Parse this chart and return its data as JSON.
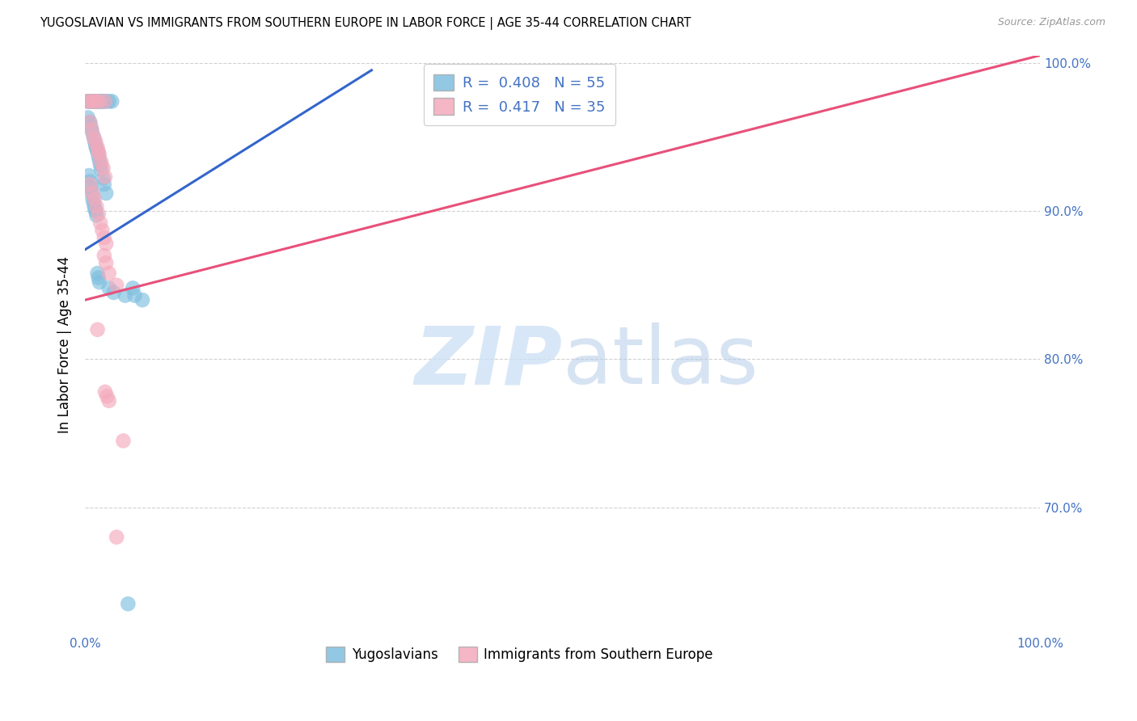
{
  "title": "YUGOSLAVIAN VS IMMIGRANTS FROM SOUTHERN EUROPE IN LABOR FORCE | AGE 35-44 CORRELATION CHART",
  "source": "Source: ZipAtlas.com",
  "ylabel": "In Labor Force | Age 35-44",
  "legend_box_blue": "R =  0.408   N = 55",
  "legend_box_pink": "R =  0.417   N = 35",
  "legend_bottom": [
    "Yugoslavians",
    "Immigrants from Southern Europe"
  ],
  "blue_color": "#7fbfdf",
  "pink_color": "#f4aabc",
  "blue_line_color": "#3366cc",
  "pink_line_color": "#e8507a",
  "accent_color": "#4472c4",
  "watermark_zip_color": "#cddff0",
  "watermark_atlas_color": "#b8cfe8",
  "background": "#ffffff",
  "grid_color": "#cccccc",
  "xlim": [
    0.0,
    1.0
  ],
  "ylim": [
    0.615,
    1.005
  ],
  "x_ticks": [
    0.0,
    0.125,
    0.25,
    0.375,
    0.5,
    0.625,
    0.75,
    0.875,
    1.0
  ],
  "x_tick_labels": [
    "0.0%",
    "",
    "",
    "",
    "",
    "",
    "",
    "",
    "100.0%"
  ],
  "y_ticks": [
    0.7,
    0.8,
    0.9,
    1.0
  ],
  "y_tick_labels_right": [
    "70.0%",
    "80.0%",
    "90.0%",
    "100.0%"
  ],
  "blue_scatter_x": [
    0.002,
    0.004,
    0.005,
    0.006,
    0.007,
    0.008,
    0.009,
    0.01,
    0.011,
    0.012,
    0.013,
    0.014,
    0.015,
    0.016,
    0.017,
    0.018,
    0.02,
    0.022,
    0.025,
    0.028,
    0.003,
    0.005,
    0.006,
    0.007,
    0.009,
    0.01,
    0.011,
    0.012,
    0.013,
    0.014,
    0.015,
    0.016,
    0.017,
    0.019,
    0.02,
    0.022,
    0.004,
    0.005,
    0.006,
    0.007,
    0.008,
    0.009,
    0.01,
    0.011,
    0.012,
    0.013,
    0.014,
    0.015,
    0.025,
    0.03,
    0.042,
    0.045,
    0.05,
    0.052,
    0.06
  ],
  "blue_scatter_y": [
    0.974,
    0.974,
    0.974,
    0.974,
    0.974,
    0.974,
    0.974,
    0.974,
    0.974,
    0.974,
    0.974,
    0.974,
    0.974,
    0.974,
    0.974,
    0.974,
    0.974,
    0.974,
    0.974,
    0.974,
    0.963,
    0.96,
    0.957,
    0.954,
    0.95,
    0.947,
    0.944,
    0.942,
    0.94,
    0.937,
    0.934,
    0.931,
    0.928,
    0.922,
    0.918,
    0.912,
    0.924,
    0.92,
    0.916,
    0.912,
    0.908,
    0.905,
    0.902,
    0.9,
    0.897,
    0.858,
    0.855,
    0.852,
    0.848,
    0.845,
    0.843,
    0.635,
    0.848,
    0.843,
    0.84
  ],
  "pink_scatter_x": [
    0.003,
    0.006,
    0.009,
    0.012,
    0.015,
    0.021,
    0.005,
    0.007,
    0.009,
    0.011,
    0.013,
    0.014,
    0.015,
    0.017,
    0.019,
    0.021,
    0.005,
    0.008,
    0.01,
    0.012,
    0.014,
    0.016,
    0.018,
    0.02,
    0.022,
    0.013,
    0.021,
    0.023,
    0.025,
    0.02,
    0.022,
    0.025,
    0.033,
    0.033,
    0.04
  ],
  "pink_scatter_y": [
    0.974,
    0.974,
    0.974,
    0.974,
    0.974,
    0.974,
    0.96,
    0.955,
    0.95,
    0.947,
    0.943,
    0.94,
    0.938,
    0.933,
    0.929,
    0.923,
    0.918,
    0.912,
    0.908,
    0.903,
    0.898,
    0.892,
    0.887,
    0.882,
    0.878,
    0.82,
    0.778,
    0.775,
    0.772,
    0.87,
    0.865,
    0.858,
    0.85,
    0.68,
    0.745
  ],
  "blue_line_x0": 0.0,
  "blue_line_y0": 0.874,
  "blue_line_x1": 0.3,
  "blue_line_y1": 0.995,
  "pink_line_x0": 0.0,
  "pink_line_y0": 0.84,
  "pink_line_x1": 1.0,
  "pink_line_y1": 1.005
}
